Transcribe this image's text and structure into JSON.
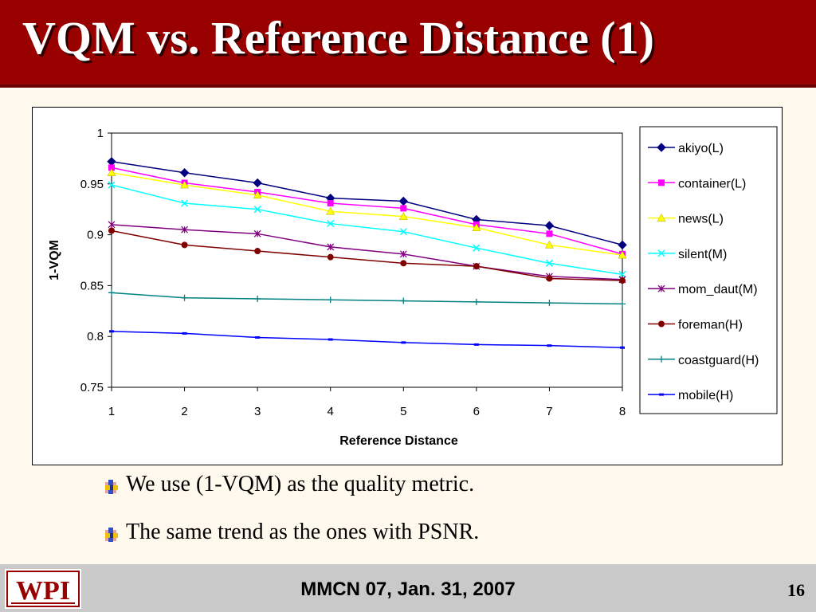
{
  "slide": {
    "title": "VQM vs. Reference Distance (1)",
    "bullets": [
      "We use (1-VQM) as the quality metric.",
      "The same trend as the ones with PSNR."
    ],
    "footer": "MMCN 07, Jan. 31, 2007",
    "page_number": "16",
    "logo_text": "WPI"
  },
  "colors": {
    "title_bar": "#990000",
    "background": "#fff8ec",
    "footer": "#c9c9c9"
  },
  "chart_data": {
    "type": "line",
    "title": "",
    "xlabel": "Reference Distance",
    "ylabel": "1-VQM",
    "x": [
      1,
      2,
      3,
      4,
      5,
      6,
      7,
      8
    ],
    "xlim": [
      1,
      8
    ],
    "ylim": [
      0.75,
      1
    ],
    "yticks": [
      0.75,
      0.8,
      0.85,
      0.9,
      0.95,
      1
    ],
    "ytick_labels": [
      "0.75",
      "0.8",
      "0.85",
      "0.9",
      "0.95",
      "1"
    ],
    "grid": false,
    "legend_position": "right",
    "series": [
      {
        "name": "akiyo(L)",
        "color": "#000080",
        "marker": "diamond",
        "values": [
          0.972,
          0.961,
          0.951,
          0.936,
          0.933,
          0.915,
          0.909,
          0.89
        ]
      },
      {
        "name": "container(L)",
        "color": "#ff00ff",
        "marker": "square",
        "values": [
          0.966,
          0.951,
          0.942,
          0.931,
          0.926,
          0.91,
          0.901,
          0.881
        ]
      },
      {
        "name": "news(L)",
        "color": "#ffff00",
        "marker": "triangle",
        "values": [
          0.961,
          0.949,
          0.939,
          0.923,
          0.918,
          0.907,
          0.89,
          0.88
        ]
      },
      {
        "name": "silent(M)",
        "color": "#00ffff",
        "marker": "x",
        "values": [
          0.949,
          0.931,
          0.925,
          0.911,
          0.903,
          0.887,
          0.872,
          0.861
        ]
      },
      {
        "name": "mom_daut(M)",
        "color": "#800080",
        "marker": "star",
        "values": [
          0.91,
          0.905,
          0.901,
          0.888,
          0.881,
          0.869,
          0.859,
          0.856
        ]
      },
      {
        "name": "foreman(H)",
        "color": "#800000",
        "marker": "circle",
        "values": [
          0.904,
          0.89,
          0.884,
          0.878,
          0.872,
          0.869,
          0.857,
          0.855
        ]
      },
      {
        "name": "coastguard(H)",
        "color": "#008080",
        "marker": "plus",
        "values": [
          0.843,
          0.838,
          0.837,
          0.836,
          0.835,
          0.834,
          0.833,
          0.832
        ]
      },
      {
        "name": "mobile(H)",
        "color": "#0000ff",
        "marker": "dash",
        "values": [
          0.805,
          0.803,
          0.799,
          0.797,
          0.794,
          0.792,
          0.791,
          0.789
        ]
      }
    ]
  }
}
